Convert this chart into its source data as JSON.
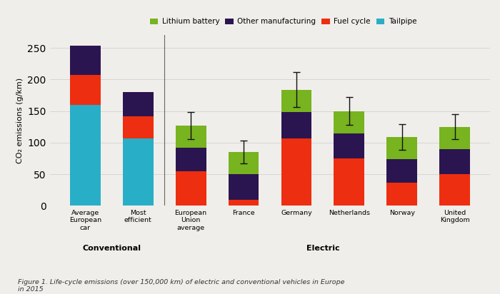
{
  "categories": [
    "Average\nEuropean\ncar",
    "Most\nefficient",
    "European\nUnion\naverage",
    "France",
    "Germany",
    "Netherlands",
    "Norway",
    "United\nKingdom"
  ],
  "segments": {
    "Tailpipe": [
      160,
      107,
      0,
      0,
      0,
      0,
      0,
      0
    ],
    "Fuel cycle": [
      47,
      35,
      55,
      10,
      107,
      75,
      37,
      50
    ],
    "Other manufacturing": [
      47,
      38,
      37,
      40,
      42,
      40,
      37,
      40
    ],
    "Lithium battery": [
      0,
      0,
      35,
      35,
      35,
      35,
      35,
      35
    ]
  },
  "error_bars": [
    null,
    null,
    22,
    18,
    28,
    22,
    20,
    20
  ],
  "colors": {
    "Tailpipe": "#29aec7",
    "Fuel cycle": "#ee2e10",
    "Other manufacturing": "#2b1550",
    "Lithium battery": "#78b320"
  },
  "legend_order": [
    "Lithium battery",
    "Other manufacturing",
    "Fuel cycle",
    "Tailpipe"
  ],
  "ylabel": "CO₂ emissions (g/km)",
  "ylim": [
    0,
    270
  ],
  "yticks": [
    0,
    50,
    100,
    150,
    200,
    250
  ],
  "figsize": [
    7.0,
    4.12
  ],
  "dpi": 100,
  "caption": "Figure 1. Life-cycle emissions (over 150,000 km) of electric and conventional vehicles in Europe\nin 2015",
  "background_color": "#f0eeea"
}
